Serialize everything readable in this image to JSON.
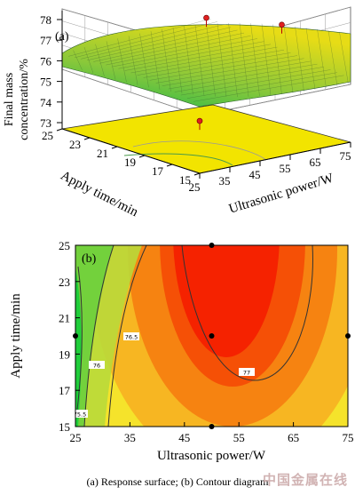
{
  "chart_data": [
    {
      "panel": "(a)",
      "type": "surface3d",
      "zlabel_line1": "Final mass",
      "zlabel_line2": "concentration/%",
      "xlabel": "Ultrasonic power/W",
      "ylabel": "Apply time/min",
      "x_ticks": [
        "25",
        "35",
        "45",
        "55",
        "65",
        "75"
      ],
      "y_ticks": [
        "15",
        "17",
        "19",
        "21",
        "23",
        "25"
      ],
      "z_ticks": [
        "73",
        "74",
        "75",
        "76",
        "77",
        "78"
      ],
      "x_range": [
        25,
        75
      ],
      "y_range": [
        15,
        25
      ],
      "z_range": [
        73,
        78
      ],
      "colormap": [
        "#2db84a",
        "#e8dd10"
      ],
      "floor_color": "#f2e400",
      "design_points": [
        {
          "x": 25,
          "y": 15,
          "z": 73.9
        },
        {
          "x": 50,
          "y": 25,
          "z": 77.7
        },
        {
          "x": 50,
          "y": 20,
          "z": 77.4
        },
        {
          "x": 75,
          "y": 20,
          "z": 76.2
        }
      ]
    },
    {
      "panel": "(b)",
      "type": "contour",
      "xlabel": "Ultrasonic power/W",
      "ylabel": "Apply time/min",
      "x_ticks": [
        "25",
        "35",
        "45",
        "55",
        "65",
        "75"
      ],
      "y_ticks": [
        "15",
        "17",
        "19",
        "21",
        "23",
        "25"
      ],
      "x_range": [
        25,
        75
      ],
      "y_range": [
        15,
        25
      ],
      "contour_labels": [
        "75.5",
        "76",
        "76.5",
        "77"
      ],
      "colors": {
        "low": "#1fce3a",
        "mid": "#f5e32b",
        "high": "#f51a00"
      },
      "design_points": [
        {
          "x": 50,
          "y": 25
        },
        {
          "x": 50,
          "y": 20
        },
        {
          "x": 50,
          "y": 15
        },
        {
          "x": 25,
          "y": 20
        },
        {
          "x": 75,
          "y": 20
        }
      ]
    }
  ],
  "caption": "(a) Response surface; (b) Contour diagram",
  "watermark": "中国金属在线"
}
